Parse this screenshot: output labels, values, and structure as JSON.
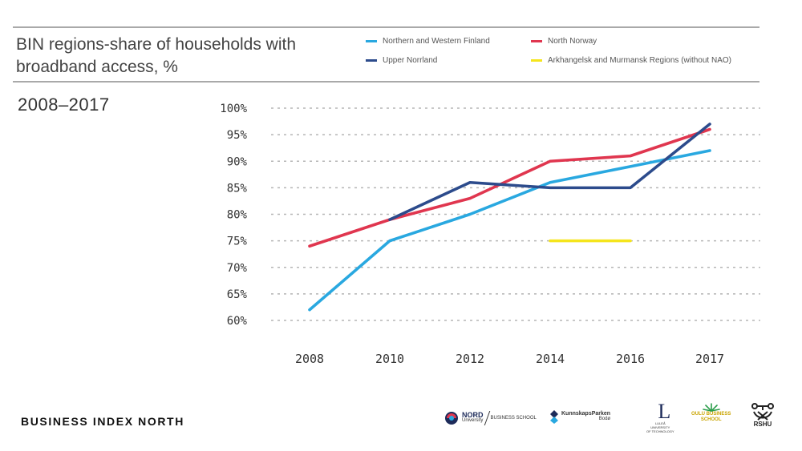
{
  "title_lines": [
    "BIN regions-share of households with",
    "broadband access, %"
  ],
  "subtitle": "2008–2017",
  "brand": "BUSINESS INDEX NORTH",
  "logos": {
    "nord": {
      "name": "NORD",
      "sub": "University",
      "divider": "BUSINESS SCHOOL"
    },
    "kunnskapsparken": {
      "name": "KunnskapsParken",
      "sub": "Bodø"
    },
    "lulea": {
      "letter": "L",
      "line1": "LULEÅ",
      "line2": "UNIVERSITY",
      "line3": "OF TECHNOLOGY"
    },
    "oulu": {
      "line1": "OULU BUSINESS",
      "line2": "SCHOOL"
    },
    "rshu": {
      "name": "RSHU"
    }
  },
  "chart_data": {
    "type": "line",
    "x": [
      "2008",
      "2010",
      "2012",
      "2014",
      "2016",
      "2017"
    ],
    "ylim": [
      60,
      100
    ],
    "yticks": [
      100,
      95,
      90,
      85,
      80,
      75,
      70,
      65,
      60
    ],
    "ytick_suffix": "%",
    "grid": true,
    "legend_position": "top-right",
    "series": [
      {
        "name": "Northern and Western Finland",
        "color": "#29a8e0",
        "values": [
          62,
          75,
          80,
          86,
          89,
          92
        ]
      },
      {
        "name": "North Norway",
        "color": "#e0364f",
        "values": [
          74,
          79,
          83,
          90,
          91,
          96
        ]
      },
      {
        "name": "Upper Norrland",
        "color": "#2c4b8c",
        "values": [
          null,
          79,
          86,
          85,
          85,
          97
        ]
      },
      {
        "name": "Arkhangelsk and Murmansk Regions (without NAO)",
        "color": "#f5e51c",
        "values": [
          null,
          null,
          null,
          75,
          75,
          null
        ]
      }
    ]
  }
}
